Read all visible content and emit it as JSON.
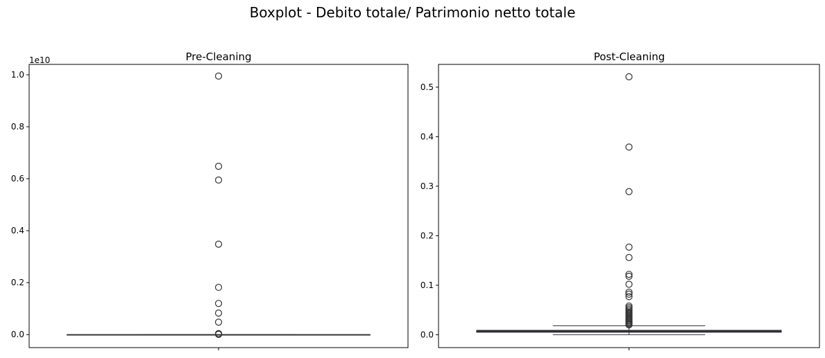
{
  "figure": {
    "title": "Boxplot - Debito totale/ Patrimonio netto totale"
  },
  "chart_data": [
    {
      "type": "boxplot",
      "title": "Pre-Cleaning",
      "xlabel": "",
      "ylabel": "",
      "offset_label": "1e10",
      "ylim": [
        -0.05,
        1.04
      ],
      "yticks": [
        0.0,
        0.2,
        0.4,
        0.6,
        0.8,
        1.0
      ],
      "ytick_labels": [
        "0.0",
        "0.2",
        "0.4",
        "0.6",
        "0.8",
        "1.0"
      ],
      "grid": false,
      "box": {
        "q1": 0.0,
        "median": 0.0,
        "q3": 0.0,
        "whisker_low": 0.0,
        "whisker_high": 0.0
      },
      "outliers": [
        9.95,
        6.48,
        5.95,
        3.48,
        1.82,
        1.2,
        0.83,
        0.48,
        0.04,
        0.02,
        0.01
      ],
      "outlier_scale": 0.1,
      "colors": {
        "box_fill": "#1f1f5e",
        "box_edge": "#333333",
        "median": "#333333",
        "outlier_edge": "#333333"
      }
    },
    {
      "type": "boxplot",
      "title": "Post-Cleaning",
      "xlabel": "",
      "ylabel": "",
      "offset_label": "",
      "ylim": [
        -0.026,
        0.546
      ],
      "yticks": [
        0.0,
        0.1,
        0.2,
        0.3,
        0.4,
        0.5
      ],
      "ytick_labels": [
        "0.0",
        "0.1",
        "0.2",
        "0.3",
        "0.4",
        "0.5"
      ],
      "grid": false,
      "box": {
        "q1": 0.005,
        "median": 0.007,
        "q3": 0.009,
        "whisker_low": 0.0,
        "whisker_high": 0.018
      },
      "outliers": [
        0.521,
        0.379,
        0.289,
        0.177,
        0.156,
        0.122,
        0.118,
        0.102,
        0.086,
        0.082,
        0.077,
        0.058,
        0.055,
        0.052,
        0.049,
        0.046,
        0.044,
        0.042,
        0.04,
        0.038,
        0.036,
        0.034,
        0.032,
        0.03,
        0.028,
        0.026,
        0.024,
        0.022,
        0.02
      ],
      "outlier_scale": 1,
      "colors": {
        "box_fill": "#1f1f5e",
        "box_edge": "#333333",
        "median": "#333333",
        "outlier_edge": "#333333"
      }
    }
  ]
}
